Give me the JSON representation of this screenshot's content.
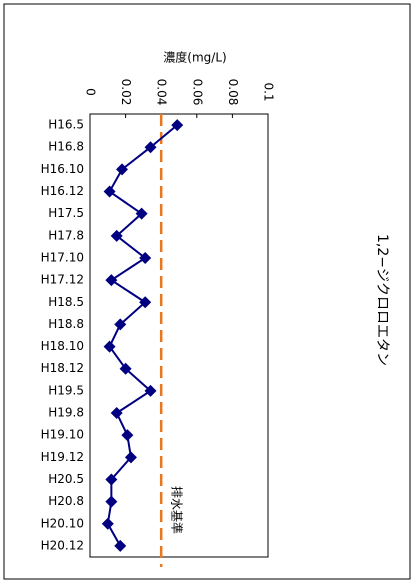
{
  "chart_data": {
    "type": "line",
    "orientation": "horizontal",
    "title": "1,2−ジクロロエタン",
    "value_axis_label": "濃度(mg/L)",
    "categories": [
      "H16.5",
      "H16.8",
      "H16.10",
      "H16.12",
      "H17.5",
      "H17.8",
      "H17.10",
      "H17.12",
      "H18.5",
      "H18.8",
      "H18.10",
      "H18.12",
      "H19.5",
      "H19.8",
      "H19.10",
      "H19.12",
      "H20.5",
      "H20.8",
      "H20.10",
      "H20.12"
    ],
    "values": [
      0.049,
      0.034,
      0.018,
      0.011,
      0.029,
      0.015,
      0.031,
      0.012,
      0.031,
      0.017,
      0.011,
      0.02,
      0.034,
      0.015,
      0.021,
      0.023,
      0.012,
      0.012,
      0.01,
      0.017
    ],
    "color": "#000080",
    "xlim": [
      0,
      0.1
    ],
    "xticks": [
      0,
      0.02,
      0.04,
      0.06,
      0.08,
      0.1
    ],
    "reference": {
      "value": 0.04,
      "label": "排水基準",
      "color": "#e87722"
    }
  }
}
